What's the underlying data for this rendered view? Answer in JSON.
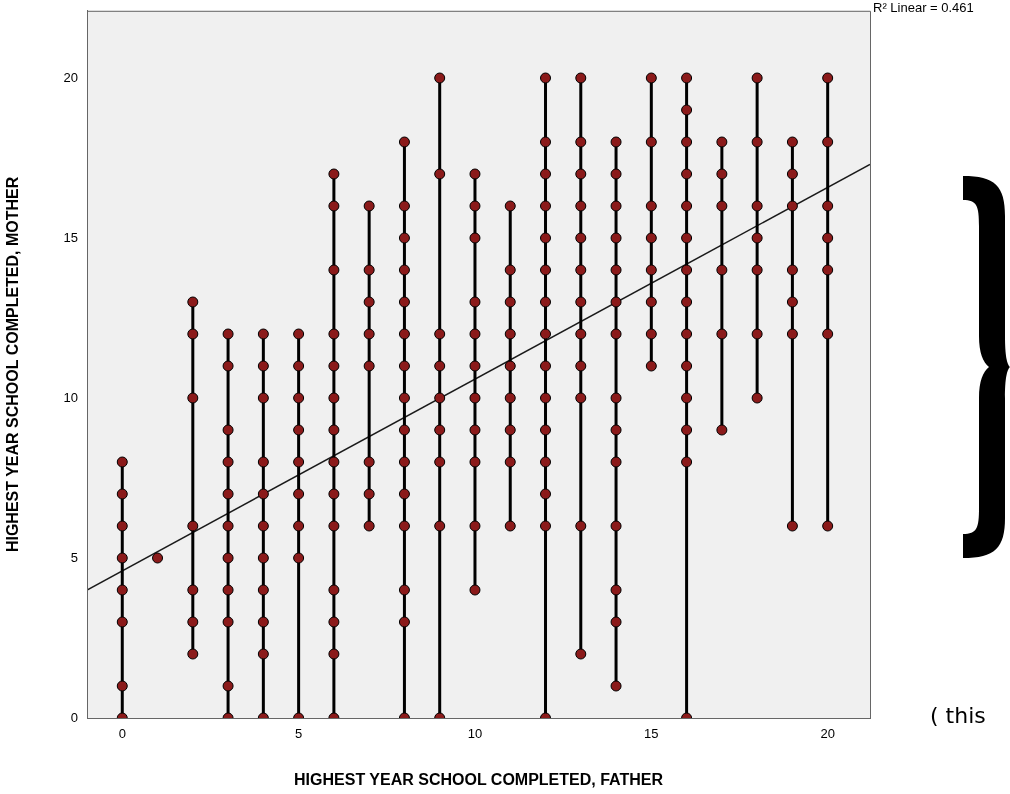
{
  "chart_data": {
    "type": "line",
    "xlabel": "HIGHEST YEAR SCHOOL COMPLETED, FATHER",
    "ylabel": "HIGHEST YEAR SCHOOL COMPLETED, MOTHER",
    "annotations": [
      "R² Linear = 0.461",
      "( this"
    ],
    "xlim": [
      -1,
      21.2
    ],
    "ylim": [
      0,
      22.1
    ],
    "xticks": [
      0,
      5,
      10,
      15,
      20
    ],
    "yticks": [
      0,
      5,
      10,
      15,
      20
    ],
    "grid": false,
    "legend": false,
    "marker": "circle",
    "line_style": "solid",
    "series": [
      {
        "color": "#8b1a1a",
        "x": [
          0,
          0,
          0,
          0,
          0,
          0,
          0,
          0
        ],
        "values": [
          0,
          1,
          3,
          4,
          5,
          6,
          7,
          8
        ]
      },
      {
        "color": "#8b1a1a",
        "x": [
          1
        ],
        "values": [
          5
        ]
      },
      {
        "color": "#8b1a1a",
        "x": [
          2,
          2,
          2,
          2,
          2,
          2,
          2
        ],
        "values": [
          2,
          3,
          4,
          6,
          10,
          12,
          13
        ]
      },
      {
        "color": "#8b1a1a",
        "x": [
          3,
          3,
          3,
          3,
          3,
          3,
          3,
          3,
          3,
          3,
          3
        ],
        "values": [
          0,
          1,
          3,
          4,
          5,
          6,
          7,
          8,
          9,
          11,
          12
        ]
      },
      {
        "color": "#8b1a1a",
        "x": [
          4,
          4,
          4,
          4,
          4,
          4,
          4,
          4,
          4,
          4,
          4
        ],
        "values": [
          0,
          2,
          3,
          4,
          5,
          6,
          7,
          8,
          10,
          11,
          12
        ]
      },
      {
        "color": "#8b1a1a",
        "x": [
          5,
          5,
          5,
          5,
          5,
          5,
          5,
          5,
          5
        ],
        "values": [
          0,
          5,
          6,
          7,
          8,
          9,
          10,
          11,
          12
        ]
      },
      {
        "color": "#8b1a1a",
        "x": [
          6,
          6,
          6,
          6,
          6,
          6,
          6,
          6,
          6,
          6,
          6,
          6,
          6,
          6
        ],
        "values": [
          0,
          2,
          3,
          4,
          6,
          7,
          8,
          9,
          10,
          11,
          12,
          14,
          16,
          17
        ]
      },
      {
        "color": "#8b1a1a",
        "x": [
          7,
          7,
          7,
          7,
          7,
          7,
          7,
          7
        ],
        "values": [
          6,
          7,
          8,
          11,
          12,
          13,
          14,
          16
        ]
      },
      {
        "color": "#8b1a1a",
        "x": [
          8,
          8,
          8,
          8,
          8,
          8,
          8,
          8,
          8,
          8,
          8,
          8,
          8,
          8,
          8
        ],
        "values": [
          0,
          3,
          4,
          6,
          7,
          8,
          9,
          10,
          11,
          12,
          13,
          14,
          15,
          16,
          18
        ]
      },
      {
        "color": "#8b1a1a",
        "x": [
          9,
          9,
          9,
          9,
          9,
          9,
          9,
          9,
          9
        ],
        "values": [
          0,
          6,
          8,
          9,
          10,
          11,
          12,
          17,
          20
        ]
      },
      {
        "color": "#8b1a1a",
        "x": [
          10,
          10,
          10,
          10,
          10,
          10,
          10,
          10,
          10,
          10,
          10
        ],
        "values": [
          4,
          6,
          8,
          9,
          10,
          11,
          12,
          13,
          15,
          16,
          17
        ]
      },
      {
        "color": "#8b1a1a",
        "x": [
          11,
          11,
          11,
          11,
          11,
          11,
          11,
          11,
          11
        ],
        "values": [
          6,
          8,
          9,
          10,
          11,
          12,
          13,
          14,
          16
        ]
      },
      {
        "color": "#8b1a1a",
        "x": [
          12,
          12,
          12,
          12,
          12,
          12,
          12,
          12,
          12,
          12,
          12,
          12,
          12,
          12,
          12
        ],
        "values": [
          0,
          6,
          7,
          8,
          9,
          10,
          11,
          12,
          13,
          14,
          15,
          16,
          17,
          18,
          20
        ]
      },
      {
        "color": "#8b1a1a",
        "x": [
          13,
          13,
          13,
          13,
          13,
          13,
          13,
          13,
          13,
          13,
          13,
          13
        ],
        "values": [
          2,
          6,
          10,
          11,
          12,
          13,
          14,
          15,
          16,
          17,
          18,
          20
        ]
      },
      {
        "color": "#8b1a1a",
        "x": [
          14,
          14,
          14,
          14,
          14,
          14,
          14,
          14,
          14,
          14,
          14,
          14,
          14,
          14
        ],
        "values": [
          1,
          3,
          4,
          6,
          8,
          9,
          10,
          12,
          13,
          14,
          15,
          16,
          17,
          18
        ]
      },
      {
        "color": "#8b1a1a",
        "x": [
          15,
          15,
          15,
          15,
          15,
          15,
          15,
          15
        ],
        "values": [
          11,
          12,
          13,
          14,
          15,
          16,
          18,
          20
        ]
      },
      {
        "color": "#8b1a1a",
        "x": [
          16,
          16,
          16,
          16,
          16,
          16,
          16,
          16,
          16,
          16,
          16,
          16,
          16,
          16
        ],
        "values": [
          0,
          8,
          9,
          10,
          11,
          12,
          13,
          14,
          15,
          16,
          17,
          18,
          19,
          20
        ]
      },
      {
        "color": "#8b1a1a",
        "x": [
          17,
          17,
          17,
          17,
          17,
          17
        ],
        "values": [
          9,
          12,
          14,
          16,
          17,
          18
        ]
      },
      {
        "color": "#8b1a1a",
        "x": [
          18,
          18,
          18,
          18,
          18,
          18,
          18
        ],
        "values": [
          10,
          12,
          14,
          15,
          16,
          18,
          20
        ]
      },
      {
        "color": "#8b1a1a",
        "x": [
          19,
          19,
          19,
          19,
          19,
          19,
          19
        ],
        "values": [
          6,
          12,
          13,
          14,
          16,
          17,
          18
        ]
      },
      {
        "color": "#8b1a1a",
        "x": [
          20,
          20,
          20,
          20,
          20,
          20,
          20
        ],
        "values": [
          6,
          12,
          14,
          15,
          16,
          18,
          20
        ]
      },
      {
        "color": "#1a1a1a",
        "marker": "none",
        "x": [
          -1,
          21.2
        ],
        "values": [
          4.0,
          17.3
        ]
      }
    ]
  }
}
